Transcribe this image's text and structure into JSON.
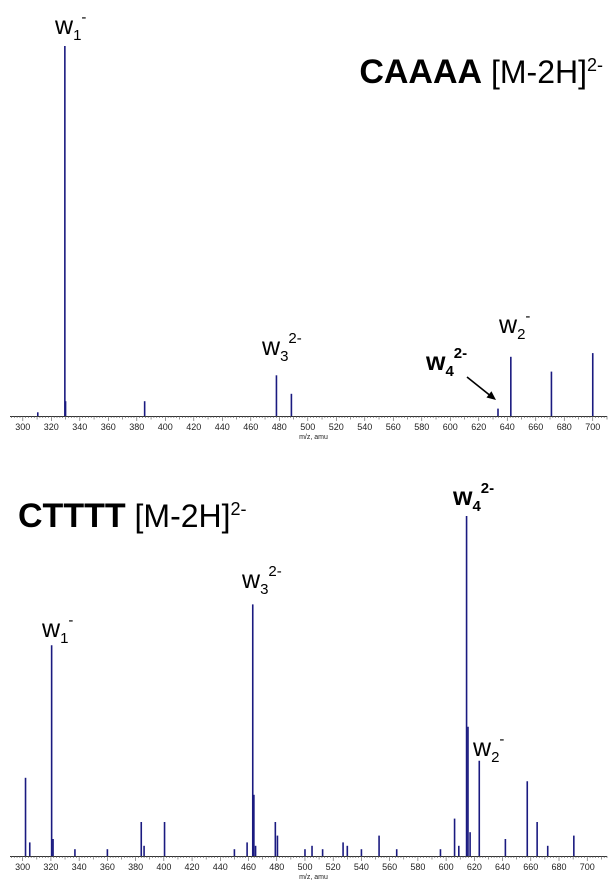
{
  "chart_data": [
    {
      "type": "bar",
      "title_bold": "CAAAA",
      "title_rest": " [M-2H]",
      "title_charge": "2-",
      "xlabel": "m/z, amu",
      "xlim": [
        291,
        710
      ],
      "xticks": [
        300,
        320,
        340,
        360,
        380,
        400,
        420,
        440,
        460,
        480,
        500,
        520,
        540,
        560,
        580,
        600,
        620,
        640,
        660,
        680,
        700
      ],
      "ylim": [
        0,
        100
      ],
      "bar_color": "#1a1a80",
      "x": [
        310.5,
        329.5,
        330.0,
        385.5,
        478.0,
        488.5,
        633.5,
        642.5,
        671.0,
        700.0
      ],
      "y": [
        1,
        100,
        4,
        4,
        11,
        6,
        2,
        16,
        12,
        17
      ],
      "annotations": [
        {
          "base": "w",
          "sub": "1",
          "sup": "-",
          "bold": false
        },
        {
          "base": "w",
          "sub": "3",
          "sup": "2-",
          "bold": false
        },
        {
          "base": "w",
          "sub": "4",
          "sup": "2-",
          "bold": true
        },
        {
          "base": "w",
          "sub": "2",
          "sup": "-",
          "bold": false
        }
      ]
    },
    {
      "type": "bar",
      "title_bold": "CTTTT",
      "title_rest": " [M-2H]",
      "title_charge": "2-",
      "xlabel": "m/z, amu",
      "xlim": [
        291,
        714
      ],
      "xticks": [
        300,
        320,
        340,
        360,
        380,
        400,
        420,
        440,
        460,
        480,
        500,
        520,
        540,
        560,
        580,
        600,
        620,
        640,
        660,
        680,
        700
      ],
      "ylim": [
        0,
        100
      ],
      "bar_color": "#1a1a80",
      "x": [
        302.0,
        305.0,
        320.5,
        321.5,
        337.0,
        360.0,
        384.0,
        386.0,
        400.5,
        450.0,
        459.0,
        463.0,
        463.8,
        465.0,
        479.0,
        480.5,
        500.0,
        505.0,
        512.5,
        527.0,
        530.0,
        540.0,
        552.5,
        565.0,
        596.0,
        606.0,
        609.0,
        614.5,
        615.5,
        617.0,
        623.5,
        642.0,
        657.5,
        664.5,
        672.0,
        690.5
      ],
      "y": [
        23,
        4,
        62,
        5,
        2,
        2,
        10,
        3,
        10,
        2,
        4,
        74,
        18,
        3,
        10,
        6,
        2,
        3,
        2,
        4,
        3,
        2,
        6,
        2,
        2,
        11,
        3,
        100,
        38,
        7,
        28,
        5,
        22,
        10,
        3,
        6
      ],
      "annotations": [
        {
          "base": "w",
          "sub": "1",
          "sup": "-",
          "bold": false
        },
        {
          "base": "w",
          "sub": "3",
          "sup": "2-",
          "bold": false
        },
        {
          "base": "w",
          "sub": "4",
          "sup": "2-",
          "bold": true
        },
        {
          "base": "w",
          "sub": "2",
          "sup": "-",
          "bold": false
        }
      ]
    }
  ]
}
